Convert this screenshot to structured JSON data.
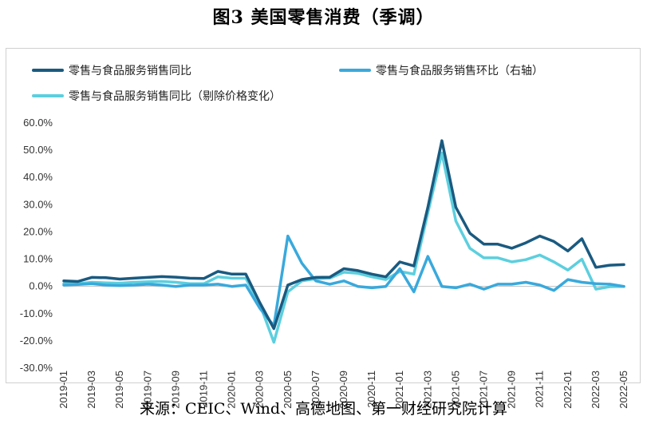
{
  "figure_title": "图3 美国零售消费（季调）",
  "source": "来源：CEIC、Wind、高德地图、第一财经研究院计算",
  "chart_data": {
    "type": "line",
    "title": "",
    "xlabel": "",
    "ylabel": "",
    "ylim": [
      -0.3,
      0.6
    ],
    "ytick_values": [
      0.6,
      0.5,
      0.4,
      0.3,
      0.2,
      0.1,
      0.0,
      -0.1,
      -0.2,
      -0.3
    ],
    "ytick_labels": [
      "60.0%",
      "50.0%",
      "40.0%",
      "30.0%",
      "20.0%",
      "10.0%",
      "0.0%",
      "-10.0%",
      "-20.0%",
      "-30.0%"
    ],
    "x": [
      "2019-01",
      "2019-02",
      "2019-03",
      "2019-04",
      "2019-05",
      "2019-06",
      "2019-07",
      "2019-08",
      "2019-09",
      "2019-10",
      "2019-11",
      "2019-12",
      "2020-01",
      "2020-02",
      "2020-03",
      "2020-04",
      "2020-05",
      "2020-06",
      "2020-07",
      "2020-08",
      "2020-09",
      "2020-10",
      "2020-11",
      "2020-12",
      "2021-01",
      "2021-02",
      "2021-03",
      "2021-04",
      "2021-05",
      "2021-06",
      "2021-07",
      "2021-08",
      "2021-09",
      "2021-10",
      "2021-11",
      "2021-12",
      "2022-01",
      "2022-02",
      "2022-03",
      "2022-04",
      "2022-05"
    ],
    "x_tick_labels": [
      "2019-01",
      "2019-03",
      "2019-05",
      "2019-07",
      "2019-09",
      "2019-11",
      "2020-01",
      "2020-03",
      "2020-05",
      "2020-07",
      "2020-09",
      "2020-11",
      "2021-01",
      "2021-03",
      "2021-05",
      "2021-07",
      "2021-09",
      "2021-11",
      "2022-01",
      "2022-03",
      "2022-05"
    ],
    "grid": false,
    "legend_position": "top",
    "series": [
      {
        "name": "零售与食品服务销售同比",
        "color": "#1a5a80",
        "values": [
          0.02,
          0.018,
          0.033,
          0.032,
          0.027,
          0.03,
          0.033,
          0.036,
          0.034,
          0.03,
          0.029,
          0.055,
          0.045,
          0.045,
          -0.06,
          -0.155,
          0.005,
          0.025,
          0.033,
          0.034,
          0.065,
          0.058,
          0.045,
          0.035,
          0.09,
          0.075,
          0.29,
          0.535,
          0.29,
          0.195,
          0.155,
          0.155,
          0.14,
          0.16,
          0.185,
          0.165,
          0.13,
          0.175,
          0.07,
          0.078,
          0.08
        ]
      },
      {
        "name": "零售与食品服务销售环比（右轴）",
        "color": "#39a9dc",
        "values": [
          0.005,
          0.007,
          0.01,
          0.005,
          0.003,
          0.005,
          0.008,
          0.005,
          0.0,
          0.005,
          0.005,
          0.008,
          0.0,
          0.005,
          -0.08,
          -0.145,
          0.185,
          0.085,
          0.02,
          0.008,
          0.02,
          0.0,
          -0.005,
          0.0,
          0.065,
          -0.02,
          0.11,
          0.0,
          -0.005,
          0.008,
          -0.01,
          0.008,
          0.008,
          0.015,
          0.005,
          -0.015,
          0.025,
          0.015,
          0.01,
          0.008,
          0.0
        ]
      },
      {
        "name": "零售与食品服务销售同比（剔除价格变化）",
        "color": "#5ccfde",
        "values": [
          0.01,
          0.01,
          0.015,
          0.013,
          0.012,
          0.015,
          0.017,
          0.018,
          0.015,
          0.01,
          0.01,
          0.035,
          0.03,
          0.03,
          -0.065,
          -0.205,
          -0.02,
          0.02,
          0.028,
          0.03,
          0.052,
          0.048,
          0.035,
          0.025,
          0.055,
          0.045,
          0.27,
          0.49,
          0.24,
          0.14,
          0.105,
          0.105,
          0.09,
          0.098,
          0.115,
          0.09,
          0.06,
          0.1,
          -0.01,
          -0.001,
          0.0
        ]
      }
    ]
  }
}
